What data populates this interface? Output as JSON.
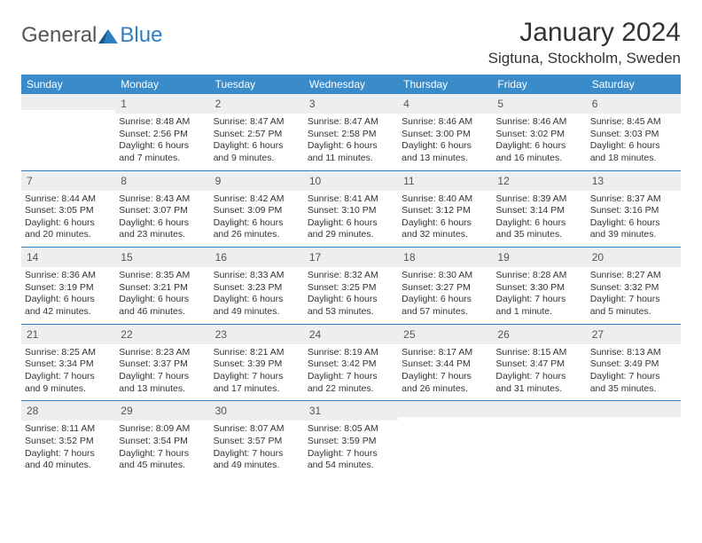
{
  "logo": {
    "text1": "General",
    "text2": "Blue",
    "color1": "#555555",
    "color2": "#2f7ec2"
  },
  "title": "January 2024",
  "location": "Sigtuna, Stockholm, Sweden",
  "colors": {
    "header_bg": "#3a8bc9",
    "header_text": "#ffffff",
    "daynum_bg": "#eceef0",
    "daynum_text": "#555555",
    "body_text": "#333333",
    "divider": "#2f7ec2",
    "page_bg": "#ffffff"
  },
  "fonts": {
    "title_size": 30,
    "location_size": 17,
    "dayname_size": 12,
    "daynum_size": 12,
    "info_size": 10.5
  },
  "daynames": [
    "Sunday",
    "Monday",
    "Tuesday",
    "Wednesday",
    "Thursday",
    "Friday",
    "Saturday"
  ],
  "weeks": [
    [
      {
        "n": "",
        "sr": "",
        "ss": "",
        "dl": ""
      },
      {
        "n": "1",
        "sr": "Sunrise: 8:48 AM",
        "ss": "Sunset: 2:56 PM",
        "dl": "Daylight: 6 hours and 7 minutes."
      },
      {
        "n": "2",
        "sr": "Sunrise: 8:47 AM",
        "ss": "Sunset: 2:57 PM",
        "dl": "Daylight: 6 hours and 9 minutes."
      },
      {
        "n": "3",
        "sr": "Sunrise: 8:47 AM",
        "ss": "Sunset: 2:58 PM",
        "dl": "Daylight: 6 hours and 11 minutes."
      },
      {
        "n": "4",
        "sr": "Sunrise: 8:46 AM",
        "ss": "Sunset: 3:00 PM",
        "dl": "Daylight: 6 hours and 13 minutes."
      },
      {
        "n": "5",
        "sr": "Sunrise: 8:46 AM",
        "ss": "Sunset: 3:02 PM",
        "dl": "Daylight: 6 hours and 16 minutes."
      },
      {
        "n": "6",
        "sr": "Sunrise: 8:45 AM",
        "ss": "Sunset: 3:03 PM",
        "dl": "Daylight: 6 hours and 18 minutes."
      }
    ],
    [
      {
        "n": "7",
        "sr": "Sunrise: 8:44 AM",
        "ss": "Sunset: 3:05 PM",
        "dl": "Daylight: 6 hours and 20 minutes."
      },
      {
        "n": "8",
        "sr": "Sunrise: 8:43 AM",
        "ss": "Sunset: 3:07 PM",
        "dl": "Daylight: 6 hours and 23 minutes."
      },
      {
        "n": "9",
        "sr": "Sunrise: 8:42 AM",
        "ss": "Sunset: 3:09 PM",
        "dl": "Daylight: 6 hours and 26 minutes."
      },
      {
        "n": "10",
        "sr": "Sunrise: 8:41 AM",
        "ss": "Sunset: 3:10 PM",
        "dl": "Daylight: 6 hours and 29 minutes."
      },
      {
        "n": "11",
        "sr": "Sunrise: 8:40 AM",
        "ss": "Sunset: 3:12 PM",
        "dl": "Daylight: 6 hours and 32 minutes."
      },
      {
        "n": "12",
        "sr": "Sunrise: 8:39 AM",
        "ss": "Sunset: 3:14 PM",
        "dl": "Daylight: 6 hours and 35 minutes."
      },
      {
        "n": "13",
        "sr": "Sunrise: 8:37 AM",
        "ss": "Sunset: 3:16 PM",
        "dl": "Daylight: 6 hours and 39 minutes."
      }
    ],
    [
      {
        "n": "14",
        "sr": "Sunrise: 8:36 AM",
        "ss": "Sunset: 3:19 PM",
        "dl": "Daylight: 6 hours and 42 minutes."
      },
      {
        "n": "15",
        "sr": "Sunrise: 8:35 AM",
        "ss": "Sunset: 3:21 PM",
        "dl": "Daylight: 6 hours and 46 minutes."
      },
      {
        "n": "16",
        "sr": "Sunrise: 8:33 AM",
        "ss": "Sunset: 3:23 PM",
        "dl": "Daylight: 6 hours and 49 minutes."
      },
      {
        "n": "17",
        "sr": "Sunrise: 8:32 AM",
        "ss": "Sunset: 3:25 PM",
        "dl": "Daylight: 6 hours and 53 minutes."
      },
      {
        "n": "18",
        "sr": "Sunrise: 8:30 AM",
        "ss": "Sunset: 3:27 PM",
        "dl": "Daylight: 6 hours and 57 minutes."
      },
      {
        "n": "19",
        "sr": "Sunrise: 8:28 AM",
        "ss": "Sunset: 3:30 PM",
        "dl": "Daylight: 7 hours and 1 minute."
      },
      {
        "n": "20",
        "sr": "Sunrise: 8:27 AM",
        "ss": "Sunset: 3:32 PM",
        "dl": "Daylight: 7 hours and 5 minutes."
      }
    ],
    [
      {
        "n": "21",
        "sr": "Sunrise: 8:25 AM",
        "ss": "Sunset: 3:34 PM",
        "dl": "Daylight: 7 hours and 9 minutes."
      },
      {
        "n": "22",
        "sr": "Sunrise: 8:23 AM",
        "ss": "Sunset: 3:37 PM",
        "dl": "Daylight: 7 hours and 13 minutes."
      },
      {
        "n": "23",
        "sr": "Sunrise: 8:21 AM",
        "ss": "Sunset: 3:39 PM",
        "dl": "Daylight: 7 hours and 17 minutes."
      },
      {
        "n": "24",
        "sr": "Sunrise: 8:19 AM",
        "ss": "Sunset: 3:42 PM",
        "dl": "Daylight: 7 hours and 22 minutes."
      },
      {
        "n": "25",
        "sr": "Sunrise: 8:17 AM",
        "ss": "Sunset: 3:44 PM",
        "dl": "Daylight: 7 hours and 26 minutes."
      },
      {
        "n": "26",
        "sr": "Sunrise: 8:15 AM",
        "ss": "Sunset: 3:47 PM",
        "dl": "Daylight: 7 hours and 31 minutes."
      },
      {
        "n": "27",
        "sr": "Sunrise: 8:13 AM",
        "ss": "Sunset: 3:49 PM",
        "dl": "Daylight: 7 hours and 35 minutes."
      }
    ],
    [
      {
        "n": "28",
        "sr": "Sunrise: 8:11 AM",
        "ss": "Sunset: 3:52 PM",
        "dl": "Daylight: 7 hours and 40 minutes."
      },
      {
        "n": "29",
        "sr": "Sunrise: 8:09 AM",
        "ss": "Sunset: 3:54 PM",
        "dl": "Daylight: 7 hours and 45 minutes."
      },
      {
        "n": "30",
        "sr": "Sunrise: 8:07 AM",
        "ss": "Sunset: 3:57 PM",
        "dl": "Daylight: 7 hours and 49 minutes."
      },
      {
        "n": "31",
        "sr": "Sunrise: 8:05 AM",
        "ss": "Sunset: 3:59 PM",
        "dl": "Daylight: 7 hours and 54 minutes."
      },
      {
        "n": "",
        "sr": "",
        "ss": "",
        "dl": ""
      },
      {
        "n": "",
        "sr": "",
        "ss": "",
        "dl": ""
      },
      {
        "n": "",
        "sr": "",
        "ss": "",
        "dl": ""
      }
    ]
  ]
}
